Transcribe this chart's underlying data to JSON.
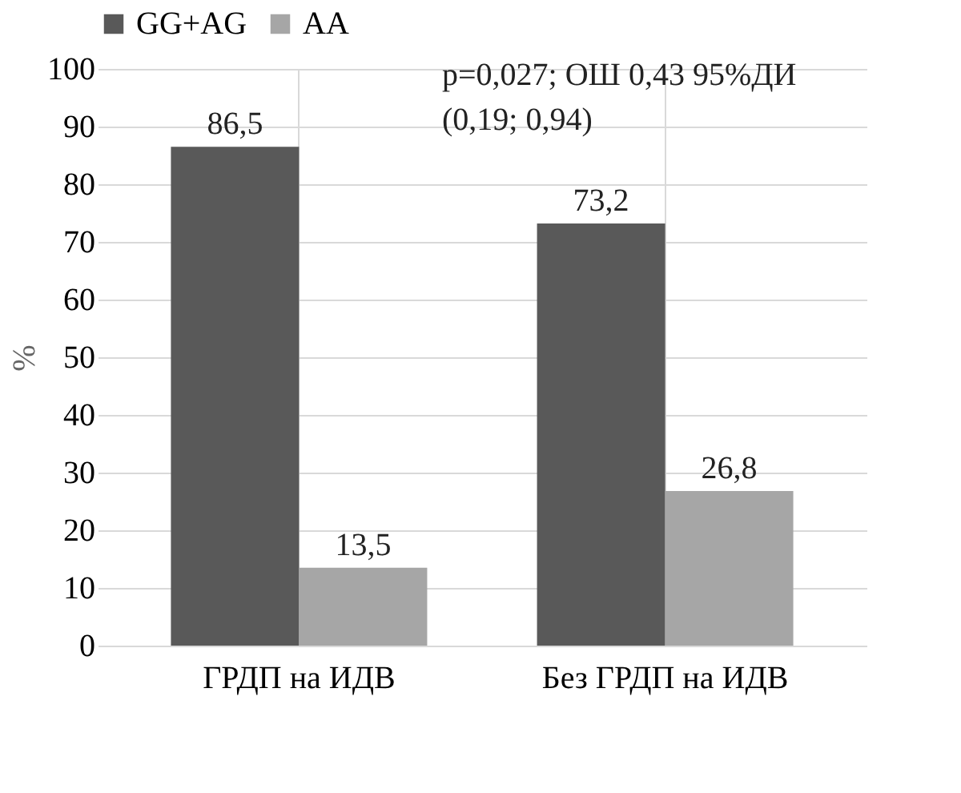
{
  "chart_data": {
    "type": "bar",
    "ylabel": "%",
    "categories": [
      "ГРДП на ИДВ",
      "Без ГРДП на ИДВ"
    ],
    "series": [
      {
        "name": "GG+AG",
        "color": "#595959",
        "values": [
          86.5,
          73.2
        ],
        "value_labels": [
          "86,5",
          "73,2"
        ]
      },
      {
        "name": "AA",
        "color": "#a6a6a6",
        "values": [
          13.5,
          26.8
        ],
        "value_labels": [
          "13,5",
          "26,8"
        ]
      }
    ],
    "ylim": [
      0,
      100
    ],
    "yticks": [
      0,
      10,
      20,
      30,
      40,
      50,
      60,
      70,
      80,
      90,
      100
    ],
    "grid": true,
    "legend": "top",
    "annotations": [
      "p=0,027; ОШ 0,43 95%ДИ",
      "(0,19; 0,94)"
    ]
  }
}
